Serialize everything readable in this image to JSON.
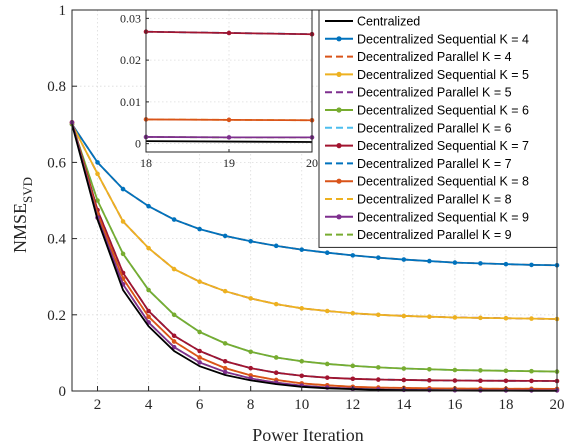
{
  "chart_data": {
    "type": "line",
    "xlabel": "Power Iteration",
    "ylabel": "NMSE",
    "ylabel_subscript": "SVD",
    "xlim": [
      1,
      20
    ],
    "ylim": [
      0,
      1
    ],
    "xticks": [
      2,
      4,
      6,
      8,
      10,
      12,
      14,
      16,
      18,
      20
    ],
    "yticks": [
      0,
      0.2,
      0.4,
      0.6,
      0.8,
      1
    ],
    "ytick_labels": [
      "0",
      "0.2",
      "0.4",
      "0.6",
      "0.8",
      "1"
    ],
    "grid": true,
    "legend_position": "top-right",
    "x": [
      1,
      2,
      3,
      4,
      5,
      6,
      7,
      8,
      9,
      10,
      11,
      12,
      13,
      14,
      15,
      16,
      17,
      18,
      19,
      20
    ],
    "series": [
      {
        "name": "Centralized",
        "color": "#000000",
        "dash": false,
        "marker": false,
        "values": [
          0.7,
          0.45,
          0.265,
          0.17,
          0.105,
          0.065,
          0.042,
          0.028,
          0.018,
          0.011,
          0.007,
          0.005,
          0.003,
          0.002,
          0.0015,
          0.001,
          0.0008,
          0.0006,
          0.0005,
          0.0004
        ]
      },
      {
        "name": "Decentralized Sequential K = 4",
        "color": "#0072BD",
        "dash": false,
        "marker": true,
        "values": [
          0.7,
          0.6,
          0.53,
          0.485,
          0.45,
          0.425,
          0.407,
          0.393,
          0.381,
          0.371,
          0.363,
          0.356,
          0.35,
          0.345,
          0.341,
          0.337,
          0.335,
          0.333,
          0.331,
          0.33
        ]
      },
      {
        "name": "Decentralized Parallel K = 4",
        "color": "#D95319",
        "dash": true,
        "marker": false,
        "values": [
          0.7,
          0.6,
          0.53,
          0.485,
          0.45,
          0.425,
          0.407,
          0.393,
          0.381,
          0.371,
          0.363,
          0.356,
          0.35,
          0.345,
          0.341,
          0.337,
          0.335,
          0.333,
          0.331,
          0.33
        ]
      },
      {
        "name": "Decentralized Sequential K = 5",
        "color": "#EDB120",
        "dash": false,
        "marker": true,
        "values": [
          0.7,
          0.57,
          0.445,
          0.375,
          0.32,
          0.287,
          0.262,
          0.243,
          0.228,
          0.217,
          0.21,
          0.204,
          0.2,
          0.197,
          0.195,
          0.193,
          0.192,
          0.191,
          0.19,
          0.189
        ]
      },
      {
        "name": "Decentralized Parallel K = 5",
        "color": "#7E2F8E",
        "dash": true,
        "marker": false,
        "values": [
          0.7,
          0.57,
          0.445,
          0.375,
          0.32,
          0.287,
          0.262,
          0.243,
          0.228,
          0.217,
          0.21,
          0.204,
          0.2,
          0.197,
          0.195,
          0.193,
          0.192,
          0.191,
          0.19,
          0.189
        ]
      },
      {
        "name": "Decentralized Sequential K = 6",
        "color": "#77AC30",
        "dash": false,
        "marker": true,
        "values": [
          0.7,
          0.5,
          0.36,
          0.265,
          0.2,
          0.155,
          0.125,
          0.103,
          0.088,
          0.078,
          0.071,
          0.066,
          0.062,
          0.059,
          0.057,
          0.055,
          0.054,
          0.053,
          0.052,
          0.051
        ]
      },
      {
        "name": "Decentralized Parallel K = 6",
        "color": "#4DBEEE",
        "dash": true,
        "marker": false,
        "values": [
          0.7,
          0.5,
          0.36,
          0.265,
          0.2,
          0.155,
          0.125,
          0.103,
          0.088,
          0.078,
          0.071,
          0.066,
          0.062,
          0.059,
          0.057,
          0.055,
          0.054,
          0.053,
          0.052,
          0.051
        ]
      },
      {
        "name": "Decentralized Sequential K = 7",
        "color": "#A2142F",
        "dash": false,
        "marker": true,
        "values": [
          0.705,
          0.475,
          0.31,
          0.21,
          0.145,
          0.105,
          0.078,
          0.06,
          0.048,
          0.04,
          0.035,
          0.032,
          0.03,
          0.029,
          0.028,
          0.0275,
          0.027,
          0.0268,
          0.0265,
          0.0262
        ]
      },
      {
        "name": "Decentralized Parallel K = 7",
        "color": "#0072BD",
        "dash": true,
        "marker": false,
        "values": [
          0.705,
          0.475,
          0.31,
          0.21,
          0.145,
          0.105,
          0.078,
          0.06,
          0.048,
          0.04,
          0.035,
          0.032,
          0.03,
          0.029,
          0.028,
          0.0275,
          0.027,
          0.0268,
          0.0265,
          0.0262
        ]
      },
      {
        "name": "Decentralized Sequential K = 8",
        "color": "#D95319",
        "dash": false,
        "marker": true,
        "values": [
          0.705,
          0.465,
          0.295,
          0.195,
          0.13,
          0.088,
          0.06,
          0.041,
          0.029,
          0.02,
          0.015,
          0.011,
          0.009,
          0.008,
          0.007,
          0.0065,
          0.006,
          0.0058,
          0.0057,
          0.0056
        ]
      },
      {
        "name": "Decentralized Parallel K = 8",
        "color": "#EDB120",
        "dash": true,
        "marker": false,
        "values": [
          0.705,
          0.465,
          0.295,
          0.195,
          0.13,
          0.088,
          0.06,
          0.041,
          0.029,
          0.02,
          0.015,
          0.011,
          0.009,
          0.008,
          0.007,
          0.0065,
          0.006,
          0.0058,
          0.0057,
          0.0056
        ]
      },
      {
        "name": "Decentralized Sequential K = 9",
        "color": "#7E2F8E",
        "dash": false,
        "marker": true,
        "values": [
          0.705,
          0.455,
          0.28,
          0.18,
          0.115,
          0.075,
          0.05,
          0.033,
          0.022,
          0.014,
          0.009,
          0.006,
          0.004,
          0.003,
          0.0025,
          0.002,
          0.0018,
          0.0016,
          0.0015,
          0.0015
        ]
      },
      {
        "name": "Decentralized Parallel K = 9",
        "color": "#77AC30",
        "dash": true,
        "marker": false,
        "values": [
          0.705,
          0.455,
          0.28,
          0.18,
          0.115,
          0.075,
          0.05,
          0.033,
          0.022,
          0.014,
          0.009,
          0.006,
          0.004,
          0.003,
          0.0025,
          0.002,
          0.0018,
          0.0016,
          0.0015,
          0.0015
        ]
      }
    ],
    "inset": {
      "xlim": [
        18,
        20
      ],
      "ylim": [
        -0.002,
        0.032
      ],
      "xticks": [
        18,
        19,
        20
      ],
      "yticks": [
        0,
        0.01,
        0.02,
        0.03
      ],
      "ytick_labels": [
        "0",
        "0.01",
        "0.02",
        "0.03"
      ]
    }
  }
}
